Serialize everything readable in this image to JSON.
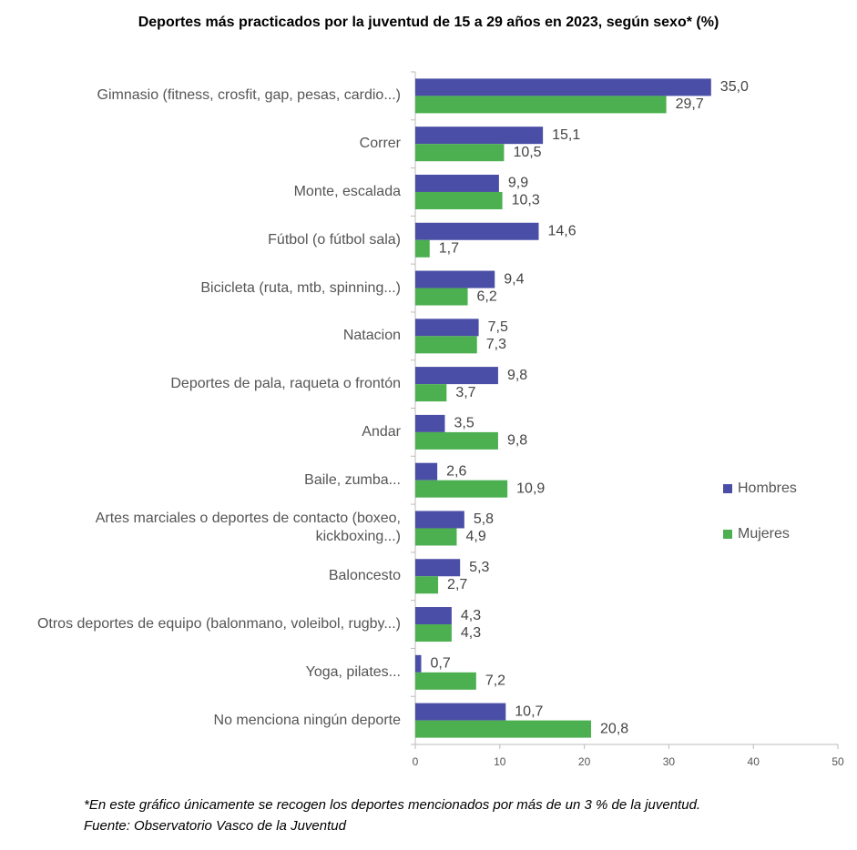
{
  "chart_data": {
    "type": "bar",
    "orientation": "horizontal",
    "title": "Deportes más practicados por la juventud de 15 a 29 años en 2023, según sexo* (%)",
    "categories": [
      "Gimnasio (fitness, crosfit, gap, pesas, cardio...)",
      "Correr",
      "Monte, escalada",
      "Fútbol (o fútbol sala)",
      "Bicicleta (ruta, mtb, spinning...)",
      "Natacion",
      "Deportes de pala,  raqueta o frontón",
      "Andar",
      "Baile, zumba...",
      "Artes marciales o deportes de contacto (boxeo,\nkickboxing...)",
      "Baloncesto",
      "Otros deportes de equipo (balonmano, voleibol, rugby...)",
      "Yoga, pilates...",
      "No menciona ningún deporte"
    ],
    "series": [
      {
        "name": "Hombres",
        "color": "#4a4ea6",
        "values": [
          35.0,
          15.1,
          9.9,
          14.6,
          9.4,
          7.5,
          9.8,
          3.5,
          2.6,
          5.8,
          5.3,
          4.3,
          0.7,
          10.7
        ],
        "value_labels": [
          "35,0",
          "15,1",
          "9,9",
          "14,6",
          "9,4",
          "7,5",
          "9,8",
          "3,5",
          "2,6",
          "5,8",
          "5,3",
          "4,3",
          "0,7",
          "10,7"
        ]
      },
      {
        "name": "Mujeres",
        "color": "#4caf50",
        "values": [
          29.7,
          10.5,
          10.3,
          1.7,
          6.2,
          7.3,
          3.7,
          9.8,
          10.9,
          4.9,
          2.7,
          4.3,
          7.2,
          20.8
        ],
        "value_labels": [
          "29,7",
          "10,5",
          "10,3",
          "1,7",
          "6,2",
          "7,3",
          "3,7",
          "9,8",
          "10,9",
          "4,9",
          "2,7",
          "4,3",
          "7,2",
          "20,8"
        ]
      }
    ],
    "xlim": [
      0,
      50
    ],
    "xticks": [
      0,
      10,
      20,
      30,
      40,
      50
    ],
    "legend": "right",
    "footnote": "*En este gráfico únicamente se recogen los deportes mencionados por más de un 3 % de la juventud.",
    "source": "Fuente: Observatorio Vasco de la Juventud"
  }
}
